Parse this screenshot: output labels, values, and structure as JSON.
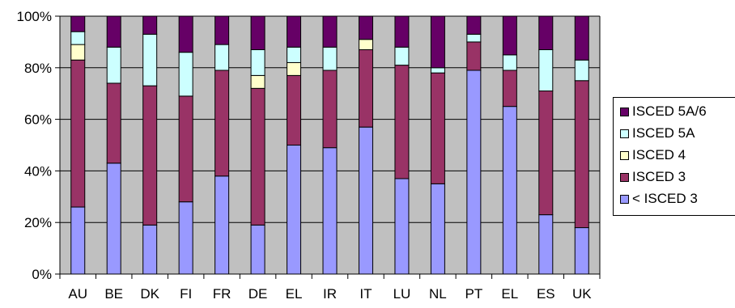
{
  "chart_data": {
    "type": "bar",
    "stacked": true,
    "categories": [
      "AU",
      "BE",
      "DK",
      "FI",
      "FR",
      "DE",
      "EL",
      "IR",
      "IT",
      "LU",
      "NL",
      "PT",
      "EL",
      "ES",
      "UK"
    ],
    "series": [
      {
        "name": "< ISCED 3",
        "color": "#9999ff",
        "values": [
          26,
          43,
          19,
          28,
          38,
          19,
          50,
          49,
          57,
          37,
          35,
          79,
          65,
          23,
          18
        ]
      },
      {
        "name": "ISCED 3",
        "color": "#993366",
        "values": [
          57,
          31,
          54,
          41,
          41,
          53,
          27,
          30,
          30,
          44,
          43,
          11,
          14,
          48,
          57
        ]
      },
      {
        "name": "ISCED 4",
        "color": "#ffffcc",
        "values": [
          6,
          0,
          0,
          0,
          0,
          5,
          5,
          0,
          4,
          0,
          0,
          0,
          0,
          0,
          0
        ]
      },
      {
        "name": "ISCED 5A",
        "color": "#ccffff",
        "values": [
          5,
          14,
          20,
          17,
          10,
          10,
          6,
          9,
          0,
          7,
          2,
          3,
          6,
          16,
          8
        ]
      },
      {
        "name": "ISCED 5A/6",
        "color": "#660066",
        "values": [
          6,
          12,
          7,
          14,
          11,
          13,
          12,
          12,
          9,
          12,
          20,
          7,
          15,
          13,
          17
        ]
      }
    ],
    "y_tick_labels": [
      "0%",
      "20%",
      "40%",
      "60%",
      "80%",
      "100%"
    ],
    "ylim": [
      0,
      100
    ],
    "legend_position": "right",
    "plot_background": "#c0c0c0",
    "grid": true
  }
}
